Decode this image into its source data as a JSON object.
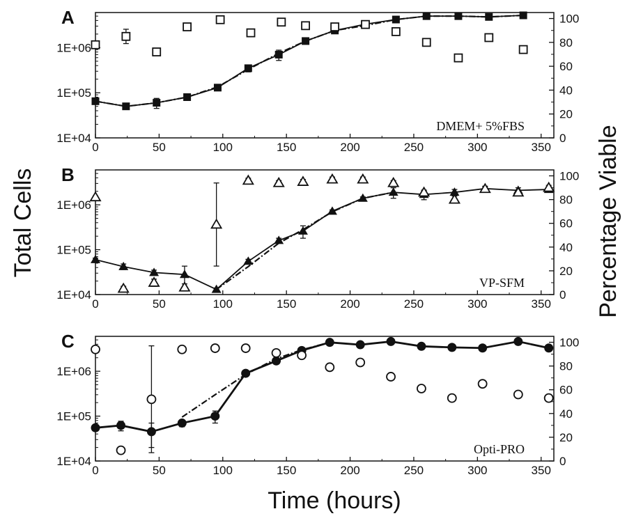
{
  "figure": {
    "y_left_label": "Total Cells",
    "y_right_label": "Percentage Viable",
    "x_label": "Time (hours)"
  },
  "chart_data": [
    {
      "type": "scatter",
      "panel": "A",
      "annotation": "DMEM+ 5%FBS",
      "xlim": [
        0,
        360
      ],
      "x_ticks": [
        0,
        50,
        100,
        150,
        200,
        250,
        300,
        350
      ],
      "y_left_scale": "log",
      "y_left_range": [
        10000,
        6000000
      ],
      "y_left_ticks": [
        {
          "value": 10000,
          "label": "1E+04"
        },
        {
          "value": 100000,
          "label": "1E+05"
        },
        {
          "value": 1000000,
          "label": "1E+06"
        }
      ],
      "y_right_range": [
        0,
        105
      ],
      "y_right_ticks": [
        0,
        20,
        40,
        60,
        80,
        100
      ],
      "total_cells": {
        "marker": "filled-square",
        "x": [
          0,
          24,
          48,
          72,
          96,
          120,
          144,
          165,
          188,
          212,
          236,
          260,
          285,
          309,
          336
        ],
        "y": [
          65000,
          50000,
          60000,
          80000,
          130000,
          350000,
          700000,
          1400000,
          2400000,
          3300000,
          4200000,
          5000000,
          5000000,
          4800000,
          5200000
        ],
        "err": [
          5000,
          3000,
          15000,
          6000,
          10000,
          60000,
          180000,
          150000,
          200000,
          300000,
          300000,
          300000,
          300000,
          300000,
          300000
        ],
        "fit_x": [
          0,
          24,
          48,
          72,
          96,
          120,
          144,
          165,
          188,
          212,
          236,
          260,
          285,
          309,
          336
        ],
        "fit_y": [
          65000,
          50000,
          60000,
          80000,
          135000,
          330000,
          750000,
          1400000,
          2400000,
          3100000,
          4200000,
          5000000,
          5000000,
          4800000,
          5200000
        ]
      },
      "viability": {
        "marker": "open-square",
        "x": [
          0,
          24,
          48,
          72,
          98,
          122,
          146,
          165,
          188,
          212,
          236,
          260,
          285,
          309,
          336
        ],
        "y": [
          78,
          85,
          72,
          93,
          99,
          88,
          97,
          94,
          93,
          95,
          89,
          80,
          67,
          84,
          74
        ],
        "err": [
          2,
          6,
          2,
          1,
          1,
          3,
          1,
          1,
          1,
          2,
          2,
          3,
          3,
          1,
          1
        ]
      }
    },
    {
      "type": "scatter",
      "panel": "B",
      "annotation": "VP-SFM",
      "xlim": [
        0,
        360
      ],
      "x_ticks": [
        0,
        50,
        100,
        150,
        200,
        250,
        300,
        350
      ],
      "y_left_scale": "log",
      "y_left_range": [
        10000,
        6000000
      ],
      "y_left_ticks": [
        {
          "value": 10000,
          "label": "1E+04"
        },
        {
          "value": 100000,
          "label": "1E+05"
        },
        {
          "value": 1000000,
          "label": "1E+06"
        }
      ],
      "y_right_range": [
        0,
        105
      ],
      "y_right_ticks": [
        0,
        20,
        40,
        60,
        80,
        100
      ],
      "total_cells": {
        "marker": "filled-triangle",
        "x": [
          0,
          22,
          46,
          70,
          95,
          120,
          144,
          163,
          186,
          210,
          234,
          258,
          282,
          306,
          332,
          356
        ],
        "y": [
          60000,
          42000,
          31000,
          28000,
          13000,
          55000,
          160000,
          260000,
          720000,
          1400000,
          1900000,
          1700000,
          1900000,
          2300000,
          2100000,
          2200000
        ],
        "err": [
          5000,
          6000,
          4000,
          15000,
          1000,
          6000,
          20000,
          80000,
          50000,
          100000,
          500000,
          400000,
          300000,
          300000,
          300000,
          200000
        ],
        "fit_x": [
          95,
          120,
          144,
          163,
          186,
          210,
          234
        ],
        "fit_y": [
          13000,
          42000,
          140000,
          280000,
          700000,
          1400000,
          1900000
        ]
      },
      "viability": {
        "marker": "open-triangle",
        "x": [
          0,
          22,
          46,
          70,
          95,
          120,
          144,
          163,
          186,
          210,
          234,
          258,
          282,
          306,
          332,
          356
        ],
        "y": [
          82,
          5,
          10,
          6,
          59,
          96,
          94,
          95,
          97,
          97,
          94,
          86,
          80,
          89,
          86,
          90
        ],
        "err": [
          1,
          2,
          3,
          3,
          35,
          2,
          2,
          2,
          2,
          2,
          2,
          2,
          3,
          2,
          2,
          2
        ]
      }
    },
    {
      "type": "scatter",
      "panel": "C",
      "annotation": "Opti-PRO",
      "xlim": [
        0,
        360
      ],
      "x_ticks": [
        0,
        50,
        100,
        150,
        200,
        250,
        300,
        350
      ],
      "y_left_scale": "log",
      "y_left_range": [
        10000,
        6000000
      ],
      "y_left_ticks": [
        {
          "value": 10000,
          "label": "1E+04"
        },
        {
          "value": 100000,
          "label": "1E+05"
        },
        {
          "value": 1000000,
          "label": "1E+06"
        }
      ],
      "y_right_range": [
        0,
        105
      ],
      "y_right_ticks": [
        0,
        20,
        40,
        60,
        80,
        100
      ],
      "total_cells": {
        "marker": "filled-circle",
        "x": [
          0,
          20,
          44,
          68,
          94,
          118,
          142,
          162,
          184,
          208,
          232,
          256,
          280,
          304,
          332,
          356
        ],
        "y": [
          55000,
          62000,
          45000,
          70000,
          100000,
          900000,
          1700000,
          2900000,
          4400000,
          3900000,
          4600000,
          3600000,
          3400000,
          3300000,
          4600000,
          3300000
        ],
        "err": [
          5000,
          15000,
          25000,
          12000,
          30000,
          100000,
          150000,
          200000,
          300000,
          300000,
          300000,
          300000,
          200000,
          300000,
          300000,
          300000
        ],
        "fit_x": [
          68,
          94,
          118,
          142,
          162,
          184
        ],
        "fit_y": [
          95000,
          300000,
          850000,
          1900000,
          3000000,
          4400000
        ]
      },
      "viability": {
        "marker": "open-circle",
        "x": [
          0,
          20,
          44,
          68,
          94,
          118,
          142,
          162,
          184,
          208,
          232,
          256,
          280,
          304,
          332,
          356
        ],
        "y": [
          94,
          9,
          52,
          94,
          95,
          95,
          91,
          89,
          79,
          83,
          71,
          61,
          53,
          65,
          56,
          53
        ],
        "err": [
          1,
          3,
          45,
          3,
          1,
          1,
          2,
          2,
          2,
          3,
          1,
          1,
          1,
          1,
          1,
          3
        ]
      }
    }
  ]
}
